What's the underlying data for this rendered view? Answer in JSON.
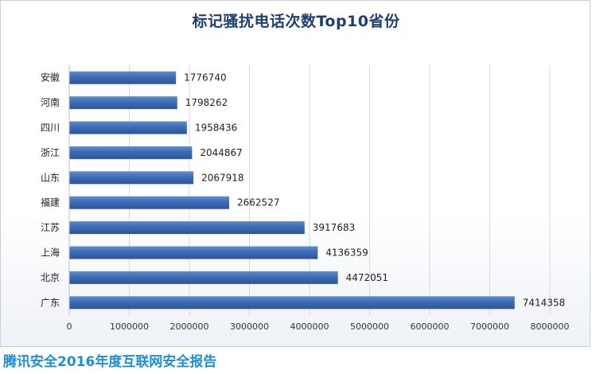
{
  "chart_data": {
    "type": "bar",
    "orientation": "horizontal",
    "title": "标记骚扰电话次数Top10省份",
    "categories": [
      "安徽",
      "河南",
      "四川",
      "浙江",
      "山东",
      "福建",
      "江苏",
      "上海",
      "北京",
      "广东"
    ],
    "values": [
      1776740,
      1798262,
      1958436,
      2044867,
      2067918,
      2662527,
      3917683,
      4136359,
      4472051,
      7414358
    ],
    "data_labels": [
      "1776740",
      "1798262",
      "1958436",
      "2044867",
      "2067918",
      "2662527",
      "3917683",
      "4136359",
      "4472051",
      "7414358"
    ],
    "xlim": [
      0,
      8000000
    ],
    "x_ticks": [
      "0",
      "1000000",
      "2000000",
      "3000000",
      "4000000",
      "5000000",
      "6000000",
      "7000000",
      "8000000"
    ],
    "xlabel": "",
    "ylabel": "",
    "grid": true,
    "bar_color": "#3d6cb4"
  },
  "footer": "腾讯安全2016年度互联网安全报告"
}
